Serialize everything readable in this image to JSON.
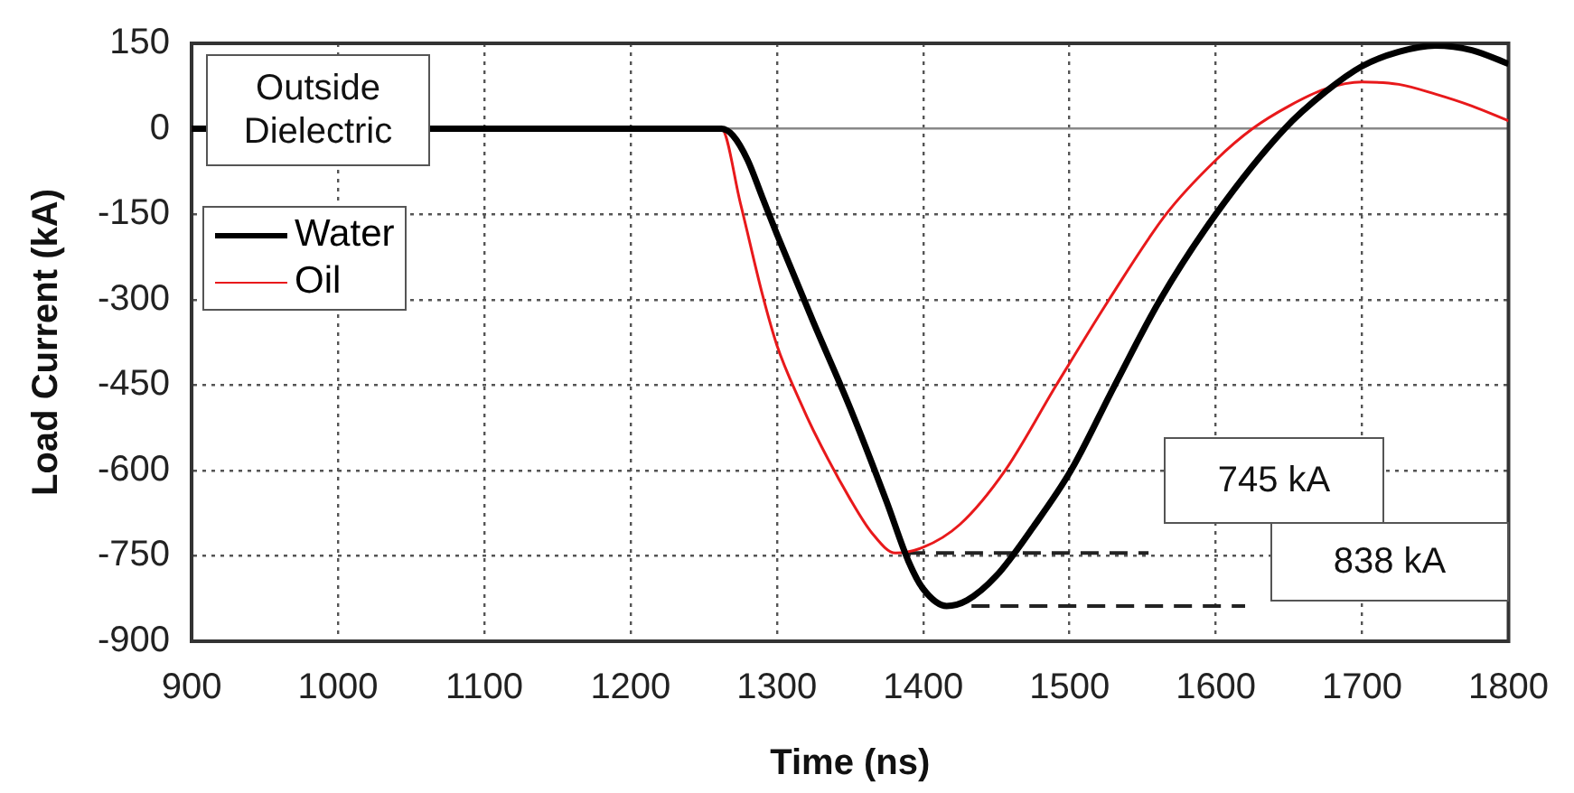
{
  "chart_data": {
    "type": "line",
    "xlabel": "Time (ns)",
    "ylabel": "Load Current (kA)",
    "xlim": [
      900,
      1800
    ],
    "xticks": [
      900,
      1000,
      1100,
      1200,
      1300,
      1400,
      1500,
      1600,
      1700,
      1800
    ],
    "ylim": [
      -900,
      150
    ],
    "yticks": [
      150,
      0,
      -150,
      -300,
      -450,
      -600,
      -750,
      -900
    ],
    "grid": true,
    "legend": "top left",
    "marker": "none",
    "line_style": "solid",
    "series": [
      {
        "name": "Water",
        "color": "#000000",
        "x": [
          900,
          1100,
          1262,
          1270,
          1280,
          1290,
          1300,
          1325,
          1350,
          1375,
          1390,
          1400,
          1416,
          1430,
          1450,
          1475,
          1501,
          1531,
          1562,
          1600,
          1647,
          1675,
          1700,
          1725,
          1750,
          1775,
          1800
        ],
        "values": [
          0,
          0,
          0,
          -12,
          -55,
          -120,
          -185,
          -340,
          -490,
          -655,
          -760,
          -808,
          -838,
          -828,
          -785,
          -700,
          -600,
          -450,
          -300,
          -150,
          0,
          65,
          110,
          135,
          146,
          138,
          114
        ]
      },
      {
        "name": "Oil",
        "color": "#e8191b",
        "x": [
          900,
          1100,
          1262,
          1275,
          1290,
          1300,
          1316,
          1325,
          1350,
          1365,
          1381,
          1400,
          1425,
          1456,
          1491,
          1527,
          1566,
          1600,
          1625,
          1650,
          1675,
          1700,
          1725,
          1750,
          1775,
          1800
        ],
        "values": [
          0,
          0,
          0,
          -130,
          -290,
          -380,
          -480,
          -530,
          -650,
          -710,
          -745,
          -735,
          -695,
          -600,
          -450,
          -300,
          -150,
          -55,
          0,
          40,
          70,
          82,
          78,
          61,
          40,
          14
        ]
      },
      {
        "color": "#222222",
        "line_style": "dashed",
        "x": [
          1389,
          1554
        ],
        "values": [
          -745,
          -745
        ]
      },
      {
        "color": "#222222",
        "line_style": "dashed",
        "x": [
          1433,
          1620
        ],
        "values": [
          -838,
          -838
        ]
      }
    ],
    "annotations": [
      "Outside Dielectric",
      "745 kA",
      "838 kA"
    ]
  }
}
